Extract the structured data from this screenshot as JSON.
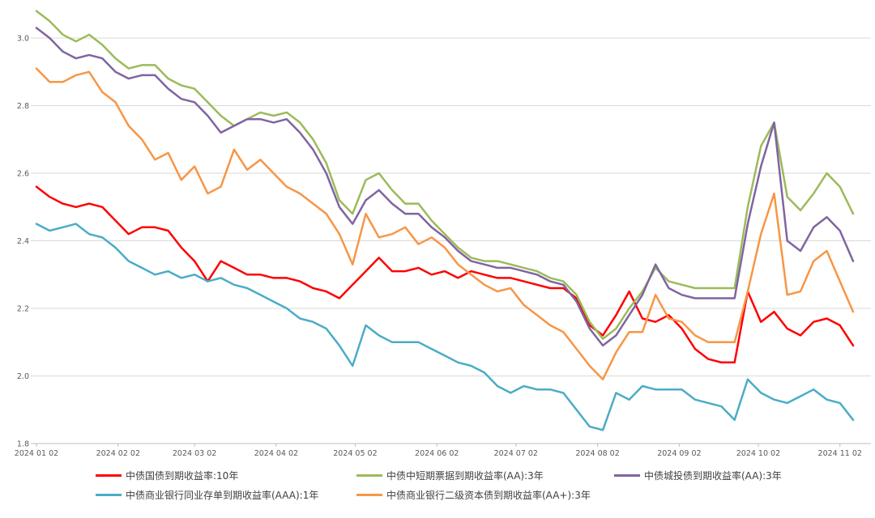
{
  "chart_data": {
    "type": "line",
    "title": "",
    "xlabel": "",
    "ylabel": "",
    "grid": "horizontal",
    "legend_position": "bottom",
    "ylim": [
      1.8,
      3.1
    ],
    "y_ticks": [
      3.0,
      2.8,
      2.6,
      2.4,
      2.2,
      2.0,
      1.8
    ],
    "y_tick_labels": [
      "3.0",
      "2.8",
      "2.6",
      "2.4",
      "2.2",
      "2.0",
      "1.8"
    ],
    "x_ticks": [
      {
        "label": "2024 01 02",
        "day": 0
      },
      {
        "label": "2024 02 02",
        "day": 31
      },
      {
        "label": "2024 03 02",
        "day": 60
      },
      {
        "label": "2024 04 02",
        "day": 91
      },
      {
        "label": "2024 05 02",
        "day": 121
      },
      {
        "label": "2024 06 02",
        "day": 152
      },
      {
        "label": "2024 07 02",
        "day": 182
      },
      {
        "label": "2024 08 02",
        "day": 213
      },
      {
        "label": "2024 09 02",
        "day": 244
      },
      {
        "label": "2024 10 02",
        "day": 274
      },
      {
        "label": "2024 11 02",
        "day": 305
      }
    ],
    "sample_interval_days": 5,
    "x": [
      "01-02",
      "01-07",
      "01-12",
      "01-17",
      "01-22",
      "01-27",
      "02-01",
      "02-06",
      "02-11",
      "02-16",
      "02-21",
      "02-26",
      "03-02",
      "03-07",
      "03-12",
      "03-17",
      "03-22",
      "03-27",
      "04-01",
      "04-06",
      "04-11",
      "04-16",
      "04-21",
      "04-26",
      "05-01",
      "05-06",
      "05-11",
      "05-16",
      "05-21",
      "05-26",
      "05-31",
      "06-05",
      "06-10",
      "06-15",
      "06-20",
      "06-25",
      "06-30",
      "07-05",
      "07-10",
      "07-15",
      "07-20",
      "07-25",
      "07-30",
      "08-04",
      "08-09",
      "08-14",
      "08-19",
      "08-24",
      "08-29",
      "09-03",
      "09-08",
      "09-13",
      "09-18",
      "09-23",
      "09-28",
      "10-03",
      "10-08",
      "10-13",
      "10-18",
      "10-23",
      "10-28",
      "11-02",
      "11-07"
    ],
    "series": [
      {
        "name": "中债国债到期收益率:10年",
        "color": "#fe0000",
        "values": [
          2.56,
          2.53,
          2.51,
          2.5,
          2.51,
          2.5,
          2.46,
          2.42,
          2.44,
          2.44,
          2.43,
          2.38,
          2.34,
          2.28,
          2.34,
          2.32,
          2.3,
          2.3,
          2.29,
          2.29,
          2.28,
          2.26,
          2.25,
          2.23,
          2.27,
          2.31,
          2.35,
          2.31,
          2.31,
          2.32,
          2.3,
          2.31,
          2.29,
          2.31,
          2.3,
          2.29,
          2.29,
          2.28,
          2.27,
          2.26,
          2.26,
          2.23,
          2.15,
          2.12,
          2.18,
          2.25,
          2.17,
          2.16,
          2.18,
          2.14,
          2.08,
          2.05,
          2.04,
          2.04,
          2.25,
          2.16,
          2.19,
          2.14,
          2.12,
          2.16,
          2.17,
          2.15,
          2.09
        ]
      },
      {
        "name": "中债中短期票据到期收益率(AA):3年",
        "color": "#9bbb59",
        "values": [
          3.08,
          3.05,
          3.01,
          2.99,
          3.01,
          2.98,
          2.94,
          2.91,
          2.92,
          2.92,
          2.88,
          2.86,
          2.85,
          2.81,
          2.77,
          2.74,
          2.76,
          2.78,
          2.77,
          2.78,
          2.75,
          2.7,
          2.63,
          2.52,
          2.48,
          2.58,
          2.6,
          2.55,
          2.51,
          2.51,
          2.46,
          2.42,
          2.38,
          2.35,
          2.34,
          2.34,
          2.33,
          2.32,
          2.31,
          2.29,
          2.28,
          2.24,
          2.16,
          2.11,
          2.14,
          2.2,
          2.25,
          2.32,
          2.28,
          2.27,
          2.26,
          2.26,
          2.26,
          2.26,
          2.5,
          2.68,
          2.75,
          2.53,
          2.49,
          2.54,
          2.6,
          2.56,
          2.48
        ]
      },
      {
        "name": "中债城投债到期收益率(AA):3年",
        "color": "#8064a2",
        "values": [
          3.03,
          3.0,
          2.96,
          2.94,
          2.95,
          2.94,
          2.9,
          2.88,
          2.89,
          2.89,
          2.85,
          2.82,
          2.81,
          2.77,
          2.72,
          2.74,
          2.76,
          2.76,
          2.75,
          2.76,
          2.72,
          2.67,
          2.6,
          2.5,
          2.45,
          2.52,
          2.55,
          2.51,
          2.48,
          2.48,
          2.44,
          2.41,
          2.37,
          2.34,
          2.33,
          2.32,
          2.32,
          2.31,
          2.3,
          2.28,
          2.27,
          2.22,
          2.14,
          2.09,
          2.12,
          2.18,
          2.24,
          2.33,
          2.26,
          2.24,
          2.23,
          2.23,
          2.23,
          2.23,
          2.45,
          2.62,
          2.75,
          2.4,
          2.37,
          2.44,
          2.47,
          2.43,
          2.34
        ]
      },
      {
        "name": "中债商业银行同业存单到期收益率(AAA):1年",
        "color": "#4bacc6",
        "values": [
          2.45,
          2.43,
          2.44,
          2.45,
          2.42,
          2.41,
          2.38,
          2.34,
          2.32,
          2.3,
          2.31,
          2.29,
          2.3,
          2.28,
          2.29,
          2.27,
          2.26,
          2.24,
          2.22,
          2.2,
          2.17,
          2.16,
          2.14,
          2.09,
          2.03,
          2.15,
          2.12,
          2.1,
          2.1,
          2.1,
          2.08,
          2.06,
          2.04,
          2.03,
          2.01,
          1.97,
          1.95,
          1.97,
          1.96,
          1.96,
          1.95,
          1.9,
          1.85,
          1.84,
          1.95,
          1.93,
          1.97,
          1.96,
          1.96,
          1.96,
          1.93,
          1.92,
          1.91,
          1.87,
          1.99,
          1.95,
          1.93,
          1.92,
          1.94,
          1.96,
          1.93,
          1.92,
          1.87
        ]
      },
      {
        "name": "中债商业银行二级资本债到期收益率(AA+):3年",
        "color": "#f79646",
        "values": [
          2.91,
          2.87,
          2.87,
          2.89,
          2.9,
          2.84,
          2.81,
          2.74,
          2.7,
          2.64,
          2.66,
          2.58,
          2.62,
          2.54,
          2.56,
          2.67,
          2.61,
          2.64,
          2.6,
          2.56,
          2.54,
          2.51,
          2.48,
          2.42,
          2.33,
          2.48,
          2.41,
          2.42,
          2.44,
          2.39,
          2.41,
          2.38,
          2.33,
          2.3,
          2.27,
          2.25,
          2.26,
          2.21,
          2.18,
          2.15,
          2.13,
          2.08,
          2.03,
          1.99,
          2.07,
          2.13,
          2.13,
          2.24,
          2.17,
          2.16,
          2.12,
          2.1,
          2.1,
          2.1,
          2.25,
          2.42,
          2.54,
          2.24,
          2.25,
          2.34,
          2.37,
          2.28,
          2.19
        ]
      }
    ]
  }
}
